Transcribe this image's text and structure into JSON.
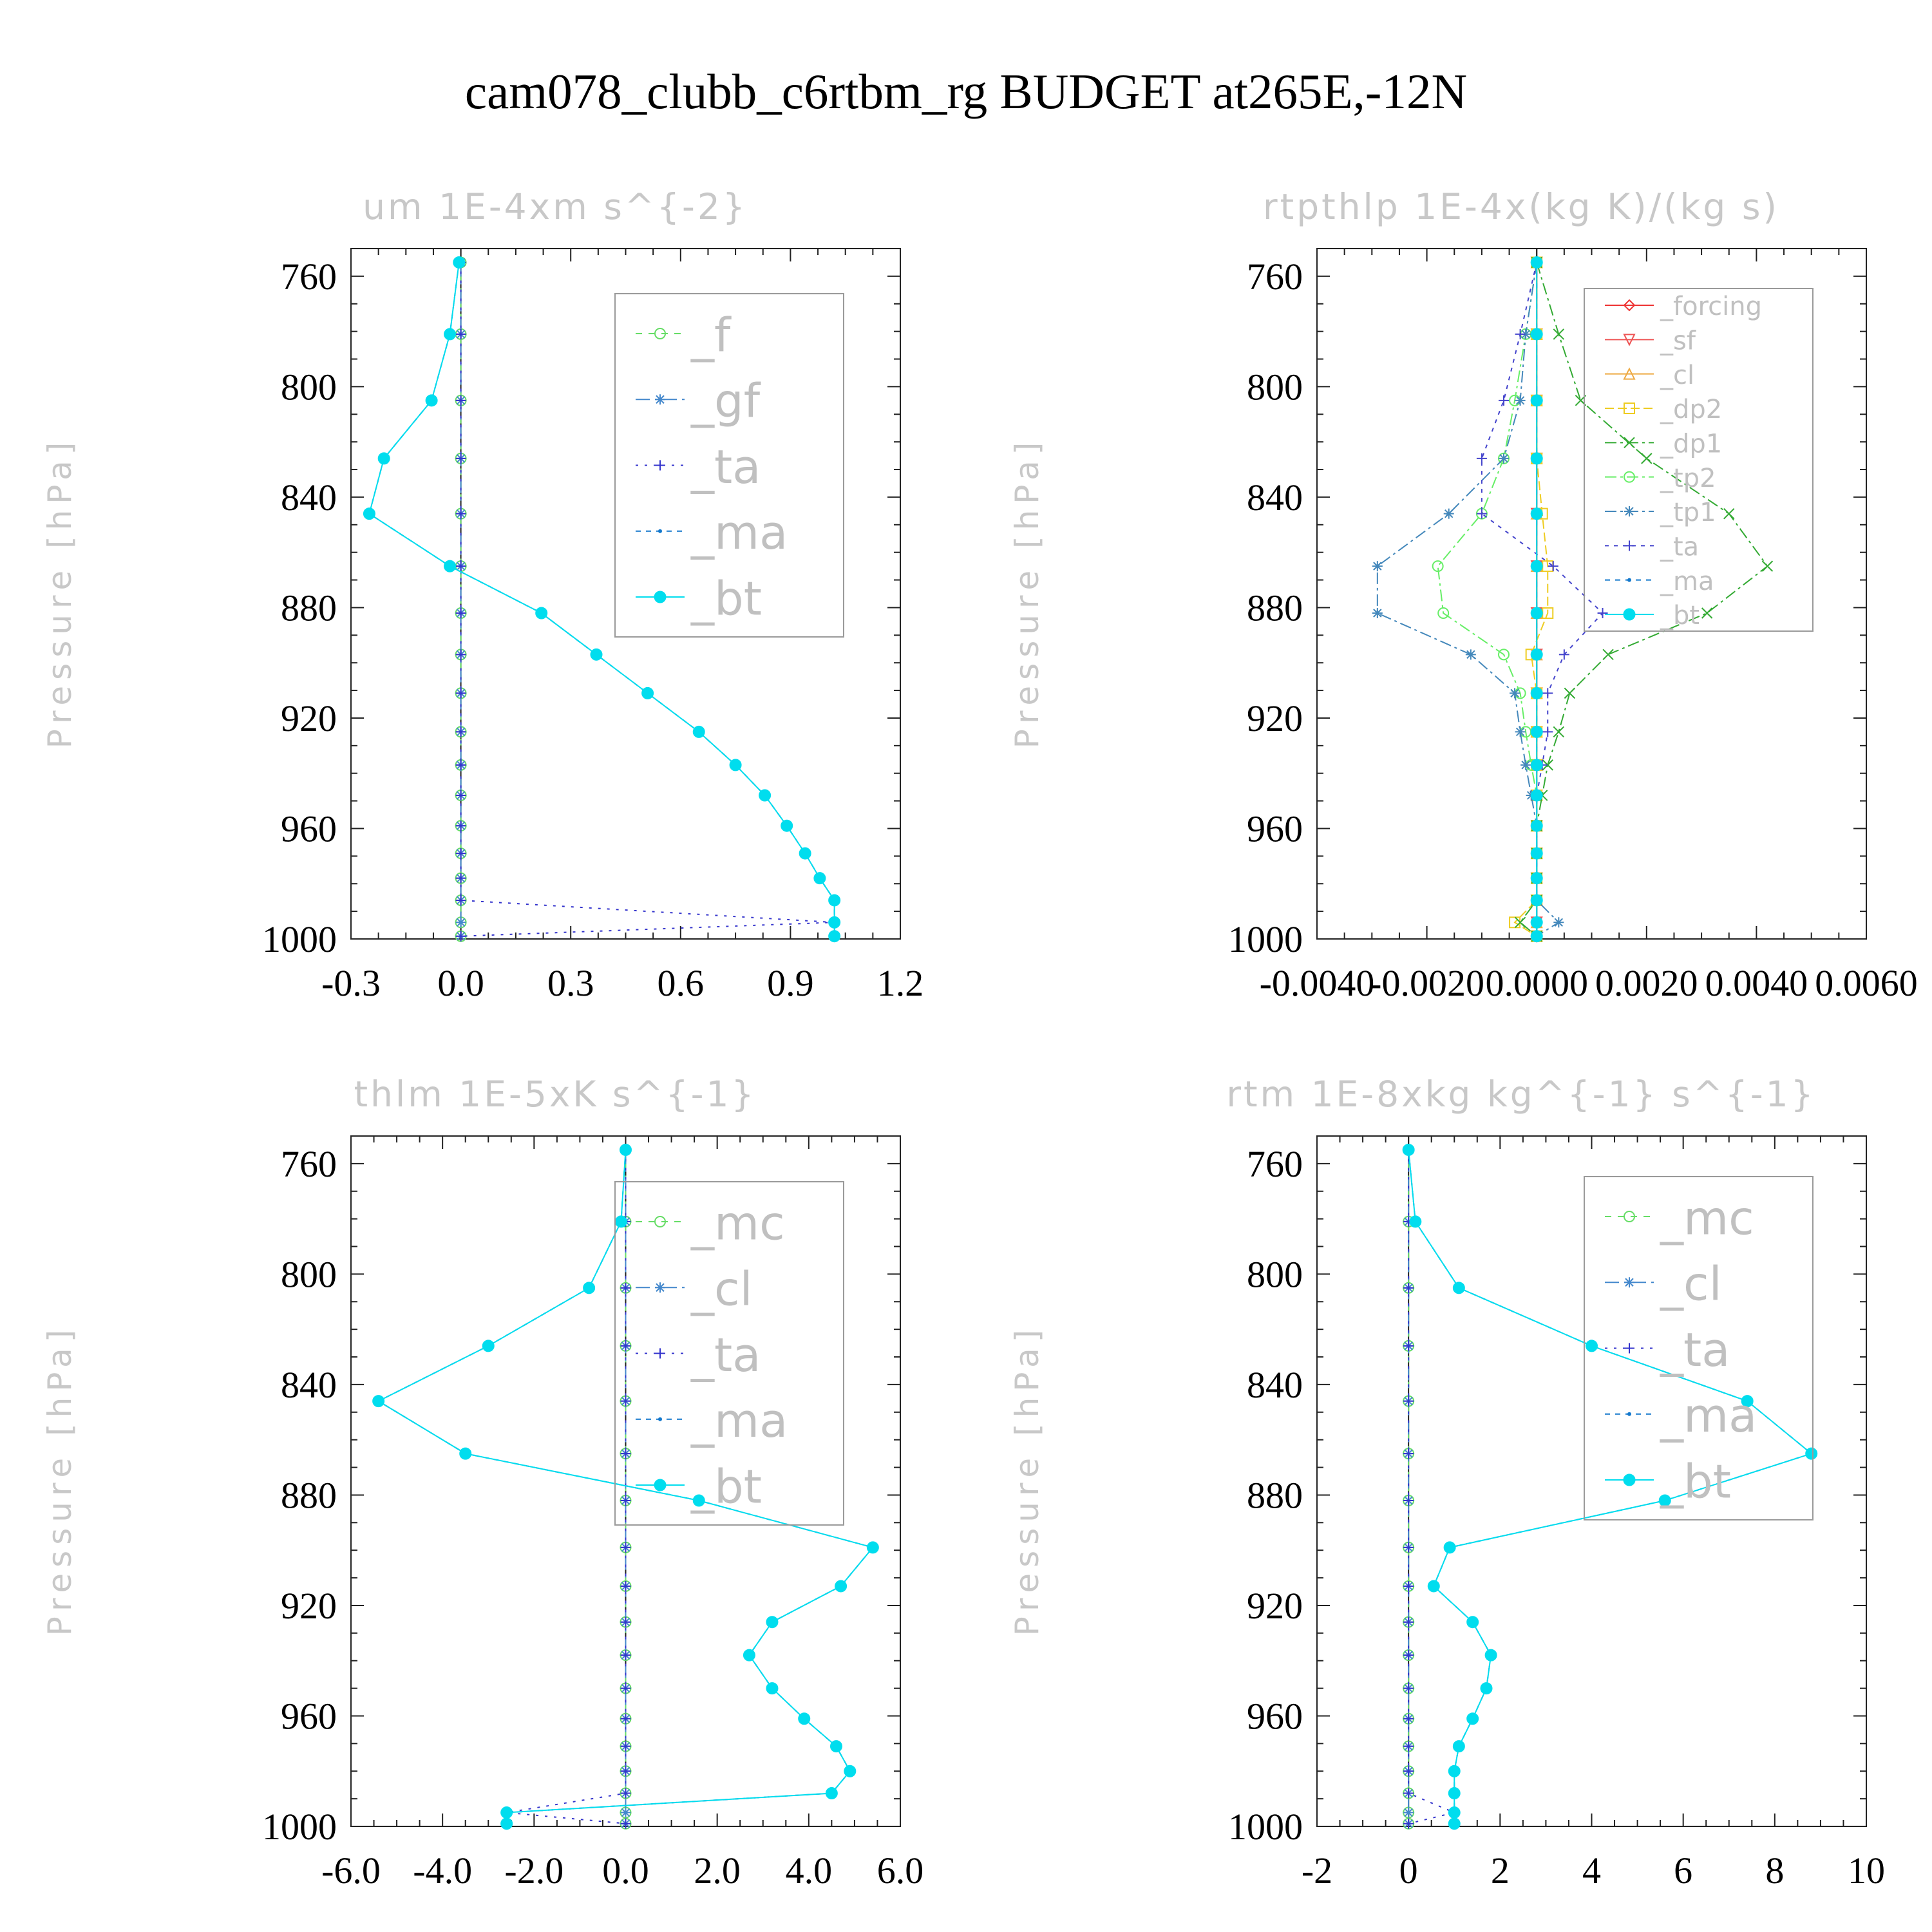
{
  "title": "cam078_clubb_c6rtbm_rg  BUDGET at265E,-12N",
  "chart_data": [
    {
      "type": "line",
      "title": "um   1E-4xm s^{-2}",
      "ylabel": "Pressure [hPa]",
      "xlim": [
        -0.3,
        1.2
      ],
      "ylim": [
        750,
        1000
      ],
      "xticks": [
        -0.3,
        0.0,
        0.3,
        0.6,
        0.9,
        1.2
      ],
      "xtick_labels": [
        "-0.3",
        "0.0",
        "0.3",
        "0.6",
        "0.9",
        "1.2"
      ],
      "yticks": [
        760,
        800,
        840,
        880,
        920,
        960,
        1000
      ],
      "ytick_labels": [
        "760",
        "800",
        "840",
        "880",
        "920",
        "960",
        "1000"
      ],
      "y": [
        755,
        781,
        805,
        826,
        846,
        865,
        882,
        897,
        911,
        925,
        937,
        948,
        959,
        969,
        978,
        986,
        994,
        999
      ],
      "legend_font": 72,
      "series": [
        {
          "name": "_f",
          "color": "#66dd66",
          "marker": "circle",
          "dash": "10,10",
          "values": [
            0,
            0,
            0,
            0,
            0,
            0,
            0,
            0,
            0,
            0,
            0,
            0,
            0,
            0,
            0,
            0,
            0,
            0
          ]
        },
        {
          "name": "_gf",
          "color": "#4488cc",
          "marker": "star",
          "dash": "22,8,4,8",
          "values": [
            0,
            0,
            0,
            0,
            0,
            0,
            0,
            0,
            0,
            0,
            0,
            0,
            0,
            0,
            0,
            0,
            0,
            0
          ]
        },
        {
          "name": "_ta",
          "color": "#3333cc",
          "marker": "plus",
          "dash": "4,10",
          "values": [
            0,
            0,
            0,
            0,
            0,
            0,
            0,
            0,
            0,
            0,
            0,
            0,
            0,
            0,
            0,
            0,
            1.02,
            0
          ]
        },
        {
          "name": "_ma",
          "color": "#1177cc",
          "marker": "dot",
          "dash": "8,8",
          "values": [
            -0.005,
            -0.03,
            -0.08,
            -0.21,
            -0.25,
            -0.03,
            0.22,
            0.37,
            0.51,
            0.65,
            0.75,
            0.83,
            0.89,
            0.94,
            0.98,
            1.02,
            1.02,
            1.02
          ]
        },
        {
          "name": "_bt",
          "color": "#00ddee",
          "marker": "filled",
          "dash": "",
          "values": [
            -0.005,
            -0.03,
            -0.08,
            -0.21,
            -0.25,
            -0.03,
            0.22,
            0.37,
            0.51,
            0.65,
            0.75,
            0.83,
            0.89,
            0.94,
            0.98,
            1.02,
            1.02,
            1.02
          ]
        }
      ]
    },
    {
      "type": "line",
      "title": "rtpthlp   1E-4x(kg K)/(kg s)",
      "ylabel": "Pressure [hPa]",
      "xlim": [
        -0.004,
        0.006
      ],
      "ylim": [
        750,
        1000
      ],
      "xticks": [
        -0.004,
        -0.002,
        0.0,
        0.002,
        0.004,
        0.006
      ],
      "xtick_labels": [
        "-0.0040",
        "-0.0020",
        "0.0000",
        "0.0020",
        "0.0040",
        "0.0060"
      ],
      "yticks": [
        760,
        800,
        840,
        880,
        920,
        960,
        1000
      ],
      "ytick_labels": [
        "760",
        "800",
        "840",
        "880",
        "920",
        "960",
        "1000"
      ],
      "y": [
        755,
        781,
        805,
        826,
        846,
        865,
        882,
        897,
        911,
        925,
        937,
        948,
        959,
        969,
        978,
        986,
        994,
        999
      ],
      "legend_font": 40,
      "series": [
        {
          "name": "_forcing",
          "color": "#ee3333",
          "marker": "diamond",
          "dash": "",
          "values": [
            0,
            0,
            0,
            0,
            0,
            0,
            0,
            0,
            0,
            0,
            0,
            0,
            0,
            0,
            0,
            0,
            0,
            0
          ]
        },
        {
          "name": "_sf",
          "color": "#ee5555",
          "marker": "tri-down",
          "dash": "",
          "values": [
            0,
            0,
            0,
            0,
            0,
            0,
            0,
            0,
            0,
            0,
            0,
            0,
            0,
            0,
            0,
            0,
            0,
            0
          ]
        },
        {
          "name": "_cl",
          "color": "#eeaa44",
          "marker": "tri-up",
          "dash": "",
          "values": [
            0,
            0,
            0,
            0,
            0,
            0,
            0,
            0,
            0,
            0,
            0,
            0,
            0,
            0,
            0,
            0,
            0,
            0
          ]
        },
        {
          "name": "_dp2",
          "color": "#eecc22",
          "marker": "square",
          "dash": "14,6",
          "values": [
            0,
            0,
            0,
            0,
            0.0001,
            0.0002,
            0.0002,
            -0.0001,
            0,
            0,
            0,
            0,
            0,
            0,
            0,
            0,
            -0.0004,
            0
          ]
        },
        {
          "name": "_dp1",
          "color": "#33aa33",
          "marker": "cross",
          "dash": "18,6,4,6",
          "values": [
            0,
            0.0004,
            0.0008,
            0.002,
            0.0035,
            0.0042,
            0.0031,
            0.0013,
            0.0006,
            0.0004,
            0.0002,
            0.0001,
            0,
            0,
            0,
            0,
            -0.0003,
            0
          ]
        },
        {
          "name": "_tp2",
          "color": "#66ee66",
          "marker": "circle",
          "dash": "18,6,4,6",
          "values": [
            0,
            -0.0002,
            -0.0004,
            -0.0006,
            -0.001,
            -0.0018,
            -0.0017,
            -0.0006,
            -0.0003,
            -0.0002,
            -0.0001,
            0,
            0,
            0,
            0,
            0,
            0,
            0
          ]
        },
        {
          "name": "_tp1",
          "color": "#4488bb",
          "marker": "star",
          "dash": "18,6,4,6",
          "values": [
            0,
            -0.0002,
            -0.0003,
            -0.0006,
            -0.0016,
            -0.0029,
            -0.0029,
            -0.0012,
            -0.0004,
            -0.0003,
            -0.0002,
            -0.0001,
            0,
            0,
            0,
            0,
            0.0004,
            0
          ]
        },
        {
          "name": "_ta",
          "color": "#4444cc",
          "marker": "plus",
          "dash": "6,8",
          "values": [
            0,
            -0.0003,
            -0.0006,
            -0.001,
            -0.001,
            0.0003,
            0.0012,
            0.0005,
            0.0002,
            0.0002,
            0.0001,
            0,
            0,
            0,
            0,
            0,
            0,
            0
          ]
        },
        {
          "name": "_ma",
          "color": "#1177cc",
          "marker": "dot",
          "dash": "8,8",
          "values": [
            0,
            0,
            0,
            0,
            0,
            0,
            0,
            0,
            0,
            0,
            0,
            0,
            0,
            0,
            0,
            0,
            0,
            0
          ]
        },
        {
          "name": "_bt",
          "color": "#00ddee",
          "marker": "filled",
          "dash": "",
          "values": [
            0,
            0,
            0,
            0,
            0,
            0,
            0,
            0,
            0,
            0,
            0,
            0,
            0,
            0,
            0,
            0,
            0,
            0
          ]
        }
      ]
    },
    {
      "type": "line",
      "title": "thlm   1E-5xK s^{-1}",
      "ylabel": "Pressure [hPa]",
      "xlim": [
        -6,
        6
      ],
      "ylim": [
        750,
        1000
      ],
      "xticks": [
        -6,
        -4,
        -2,
        0,
        2,
        4,
        6
      ],
      "xtick_labels": [
        "-6.0",
        "-4.0",
        "-2.0",
        "0.0",
        "2.0",
        "4.0",
        "6.0"
      ],
      "yticks": [
        760,
        800,
        840,
        880,
        920,
        960,
        1000
      ],
      "ytick_labels": [
        "760",
        "800",
        "840",
        "880",
        "920",
        "960",
        "1000"
      ],
      "y": [
        755,
        781,
        805,
        826,
        846,
        865,
        882,
        899,
        913,
        926,
        938,
        950,
        961,
        971,
        980,
        988,
        995,
        999
      ],
      "legend_font": 72,
      "series": [
        {
          "name": "_mc",
          "color": "#66dd66",
          "marker": "circle",
          "dash": "10,10",
          "values": [
            0,
            0,
            0,
            0,
            0,
            0,
            0,
            0,
            0,
            0,
            0,
            0,
            0,
            0,
            0,
            0,
            0,
            0
          ]
        },
        {
          "name": "_cl",
          "color": "#4488cc",
          "marker": "star",
          "dash": "22,8,4,8",
          "values": [
            0,
            0,
            0,
            0,
            0,
            0,
            0,
            0,
            0,
            0,
            0,
            0,
            0,
            0,
            0,
            0,
            0,
            0
          ]
        },
        {
          "name": "_ta",
          "color": "#3333cc",
          "marker": "plus",
          "dash": "4,10",
          "values": [
            0,
            0,
            0,
            0,
            0,
            0,
            0,
            0,
            0,
            0,
            0,
            0,
            0,
            0,
            0,
            0,
            -2.6,
            0
          ]
        },
        {
          "name": "_ma",
          "color": "#1177cc",
          "marker": "dot",
          "dash": "8,8",
          "values": [
            0,
            -0.1,
            -0.8,
            -3.0,
            -5.4,
            -3.5,
            1.6,
            5.4,
            4.7,
            3.2,
            2.7,
            3.2,
            3.9,
            4.6,
            4.9,
            4.5,
            -2.6,
            -2.6
          ]
        },
        {
          "name": "_bt",
          "color": "#00ddee",
          "marker": "filled",
          "dash": "",
          "values": [
            0,
            -0.1,
            -0.8,
            -3.0,
            -5.4,
            -3.5,
            1.6,
            5.4,
            4.7,
            3.2,
            2.7,
            3.2,
            3.9,
            4.6,
            4.9,
            4.5,
            -2.6,
            -2.6
          ]
        }
      ]
    },
    {
      "type": "line",
      "title": "rtm   1E-8xkg kg^{-1} s^{-1}",
      "ylabel": "Pressure [hPa]",
      "xlim": [
        -2,
        10
      ],
      "ylim": [
        750,
        1000
      ],
      "xticks": [
        -2,
        0,
        2,
        4,
        6,
        8,
        10
      ],
      "xtick_labels": [
        "-2",
        "0",
        "2",
        "4",
        "6",
        "8",
        "10"
      ],
      "yticks": [
        760,
        800,
        840,
        880,
        920,
        960,
        1000
      ],
      "ytick_labels": [
        "760",
        "800",
        "840",
        "880",
        "920",
        "960",
        "1000"
      ],
      "y": [
        755,
        781,
        805,
        826,
        846,
        865,
        882,
        899,
        913,
        926,
        938,
        950,
        961,
        971,
        980,
        988,
        995,
        999
      ],
      "legend_font": 72,
      "series": [
        {
          "name": "_mc",
          "color": "#66dd66",
          "marker": "circle",
          "dash": "10,10",
          "values": [
            0,
            0,
            0,
            0,
            0,
            0,
            0,
            0,
            0,
            0,
            0,
            0,
            0,
            0,
            0,
            0,
            0,
            0
          ]
        },
        {
          "name": "_cl",
          "color": "#4488cc",
          "marker": "star",
          "dash": "22,8,4,8",
          "values": [
            0,
            0,
            0,
            0,
            0,
            0,
            0,
            0,
            0,
            0,
            0,
            0,
            0,
            0,
            0,
            0,
            0,
            0
          ]
        },
        {
          "name": "_ta",
          "color": "#3333cc",
          "marker": "plus",
          "dash": "4,10",
          "values": [
            0,
            0,
            0,
            0,
            0,
            0,
            0,
            0,
            0,
            0,
            0,
            0,
            0,
            0,
            0,
            0,
            1.0,
            0
          ]
        },
        {
          "name": "_ma",
          "color": "#1177cc",
          "marker": "dot",
          "dash": "8,8",
          "values": [
            0,
            0.15,
            1.1,
            4.0,
            7.4,
            8.8,
            5.6,
            0.9,
            0.55,
            1.4,
            1.8,
            1.7,
            1.4,
            1.1,
            1.0,
            1.0,
            1.0,
            1.0
          ]
        },
        {
          "name": "_bt",
          "color": "#00ddee",
          "marker": "filled",
          "dash": "",
          "values": [
            0,
            0.15,
            1.1,
            4.0,
            7.4,
            8.8,
            5.6,
            0.9,
            0.55,
            1.4,
            1.8,
            1.7,
            1.4,
            1.1,
            1.0,
            1.0,
            1.0,
            1.0
          ]
        }
      ]
    }
  ]
}
